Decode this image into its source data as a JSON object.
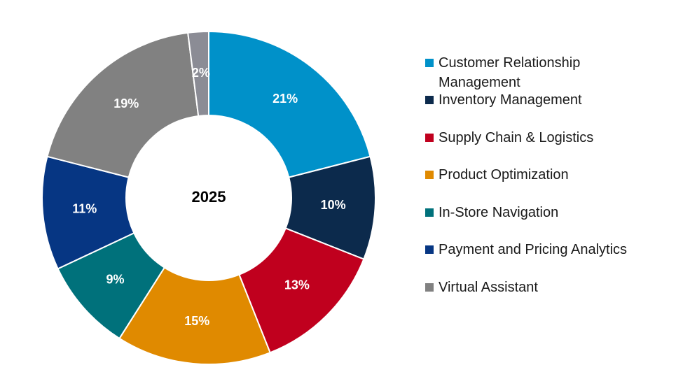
{
  "chart_data": {
    "type": "donut",
    "title": "2025",
    "categories": [
      "Customer Relationship Management",
      "Inventory Management",
      "Supply Chain & Logistics",
      "Product Optimization",
      "In-Store Navigation",
      "Payment and Pricing Analytics",
      "Virtual Assistant",
      null
    ],
    "values": [
      21,
      10,
      13,
      15,
      9,
      11,
      19,
      2
    ],
    "value_labels": [
      "21%",
      "10%",
      "13%",
      "15%",
      "9%",
      "11%",
      "19%",
      "2%"
    ],
    "colors": [
      "#0091c9",
      "#0c2a4c",
      "#c0001e",
      "#e08a00",
      "#00717b",
      "#063683",
      "#818181",
      "#8b8c95"
    ],
    "legend": "right"
  }
}
